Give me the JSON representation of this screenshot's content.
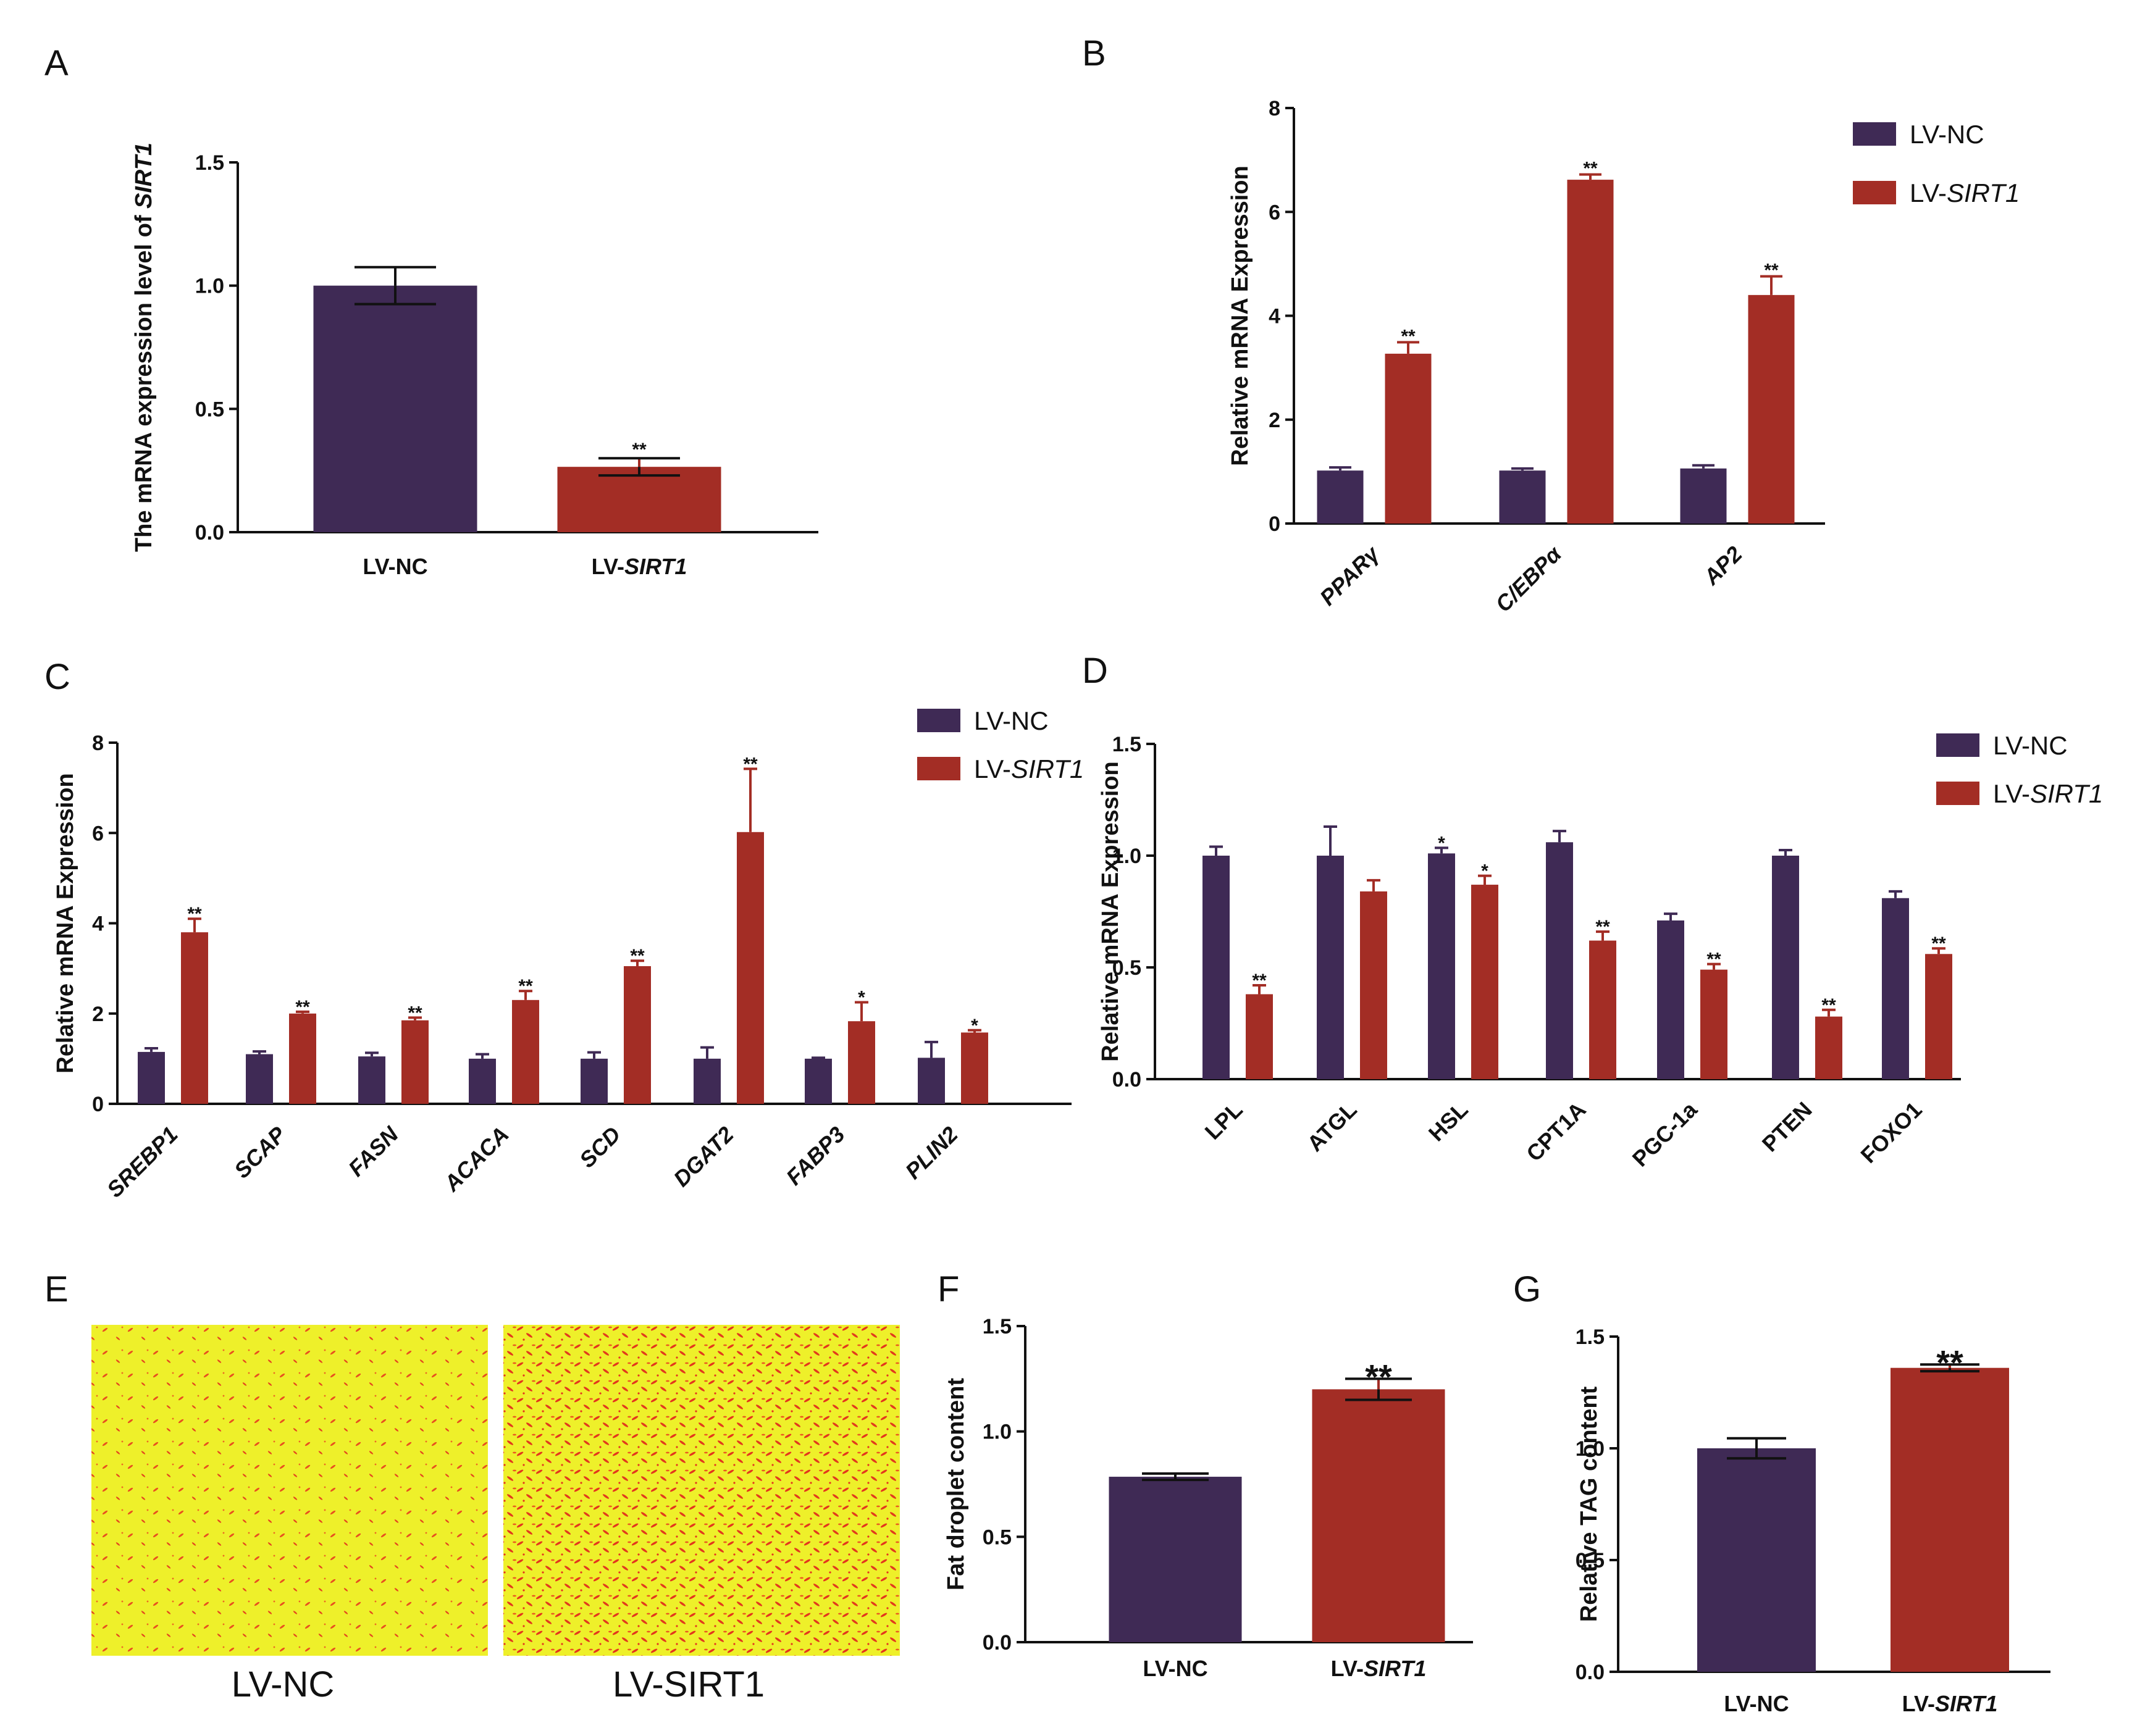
{
  "colors": {
    "nc": "#3f2a55",
    "sirt1": "#a32d25",
    "axis": "#111111",
    "img_bg": "#eef02a",
    "img_dot": "#e4361d"
  },
  "chart_data": [
    {
      "id": "A",
      "panel": "A",
      "type": "bar",
      "ylabel_parts": [
        "The mRNA expression level of ",
        "SIRT1"
      ],
      "ylim": [
        0,
        1.5
      ],
      "yticks": [
        "0.0",
        "0.5",
        "1.0",
        "1.5"
      ],
      "ytick_values": [
        0,
        0.5,
        1.0,
        1.5
      ],
      "categories": [
        {
          "label": "LV-NC"
        },
        {
          "label": "LV-",
          "label_it": "SIRT1"
        }
      ],
      "series": [
        {
          "name": "LV-NC",
          "values": [
            1.0,
            0.265
          ],
          "errors": [
            0.075,
            0.035
          ],
          "sig": [
            "",
            "**"
          ]
        }
      ]
    },
    {
      "id": "B",
      "panel": "B",
      "type": "bar",
      "ylabel": "Relative mRNA Expression",
      "ylim": [
        0,
        8
      ],
      "yticks": [
        "0",
        "2",
        "4",
        "6",
        "8"
      ],
      "ytick_values": [
        0,
        2,
        4,
        6,
        8
      ],
      "categories": [
        "PPARγ",
        "C/EBPα",
        "AP2"
      ],
      "legend": [
        "LV-NC",
        "LV-",
        "SIRT1"
      ],
      "series": [
        {
          "name": "LV-NC",
          "values": [
            1.02,
            1.02,
            1.06
          ],
          "errors": [
            0.06,
            0.04,
            0.06
          ],
          "sig": [
            "",
            "",
            ""
          ]
        },
        {
          "name": "LV-SIRT1",
          "values": [
            3.27,
            6.62,
            4.4
          ],
          "errors": [
            0.22,
            0.1,
            0.36
          ],
          "sig": [
            "**",
            "**",
            "**"
          ]
        }
      ]
    },
    {
      "id": "C",
      "panel": "C",
      "type": "bar",
      "ylabel": "Relative mRNA Expression",
      "ylim": [
        0,
        8
      ],
      "yticks": [
        "0",
        "2",
        "4",
        "6",
        "8"
      ],
      "ytick_values": [
        0,
        2,
        4,
        6,
        8
      ],
      "categories": [
        "SREBP1",
        "SCAP",
        "FASN",
        "ACACA",
        "SCD",
        "DGAT2",
        "FABP3",
        "PLIN2"
      ],
      "legend": [
        "LV-NC",
        "LV-",
        "SIRT1"
      ],
      "series": [
        {
          "name": "LV-NC",
          "values": [
            1.15,
            1.1,
            1.05,
            1.0,
            1.0,
            1.0,
            1.0,
            1.02
          ],
          "errors": [
            0.08,
            0.06,
            0.08,
            0.1,
            0.14,
            0.25,
            0.02,
            0.35
          ],
          "sig": [
            "",
            "",
            "",
            "",
            "",
            "",
            "",
            ""
          ]
        },
        {
          "name": "LV-SIRT1",
          "values": [
            3.8,
            2.0,
            1.85,
            2.3,
            3.05,
            6.02,
            1.83,
            1.58
          ],
          "errors": [
            0.3,
            0.04,
            0.06,
            0.2,
            0.12,
            1.4,
            0.42,
            0.05
          ],
          "sig": [
            "**",
            "**",
            "**",
            "**",
            "**",
            "**",
            "*",
            "*"
          ]
        }
      ]
    },
    {
      "id": "D",
      "panel": "D",
      "type": "bar",
      "ylabel": "Relative mRNA Expression",
      "ylim": [
        0,
        1.5
      ],
      "yticks": [
        "0.0",
        "0.5",
        "1.0",
        "1.5"
      ],
      "ytick_values": [
        0,
        0.5,
        1.0,
        1.5
      ],
      "categories": [
        "LPL",
        "ATGL",
        "HSL",
        "CPT1A",
        "PGC-1a",
        "PTEN",
        "FOXO1"
      ],
      "legend": [
        "LV-NC",
        "LV-",
        "SIRT1"
      ],
      "series": [
        {
          "name": "LV-NC",
          "values": [
            1.0,
            1.0,
            1.01,
            1.06,
            0.71,
            1.0,
            0.81
          ],
          "errors": [
            0.04,
            0.13,
            0.025,
            0.05,
            0.03,
            0.025,
            0.03
          ],
          "sig": [
            "",
            "",
            "*",
            "",
            "",
            "",
            ""
          ]
        },
        {
          "name": "LV-SIRT1",
          "values": [
            0.38,
            0.84,
            0.87,
            0.62,
            0.49,
            0.28,
            0.56
          ],
          "errors": [
            0.04,
            0.05,
            0.04,
            0.04,
            0.025,
            0.03,
            0.025
          ],
          "sig": [
            "**",
            "",
            "*",
            "**",
            "**",
            "**",
            "**"
          ]
        }
      ]
    },
    {
      "id": "F",
      "panel": "F",
      "type": "bar",
      "ylabel": "Fat droplet content",
      "ylim": [
        0,
        1.5
      ],
      "yticks": [
        "0.0",
        "0.5",
        "1.0",
        "1.5"
      ],
      "ytick_values": [
        0,
        0.5,
        1.0,
        1.5
      ],
      "categories": [
        {
          "label": "LV-NC"
        },
        {
          "label": "LV-",
          "label_it": "SIRT1"
        }
      ],
      "series": [
        {
          "name": "LV-NC",
          "values": [
            0.785,
            1.2
          ],
          "errors": [
            0.015,
            0.05
          ],
          "sig": [
            "",
            "**"
          ]
        }
      ]
    },
    {
      "id": "G",
      "panel": "G",
      "type": "bar",
      "ylabel": "Relative TAG content",
      "ylim": [
        0,
        1.5
      ],
      "yticks": [
        "0.0",
        "0.5",
        "1.0",
        "1.5"
      ],
      "ytick_values": [
        0,
        0.5,
        1.0,
        1.5
      ],
      "categories": [
        {
          "label": "LV-NC"
        },
        {
          "label": "LV-",
          "label_it": "SIRT1"
        }
      ],
      "series": [
        {
          "name": "LV-NC",
          "values": [
            1.0,
            1.36
          ],
          "errors": [
            0.045,
            0.015
          ],
          "sig": [
            "",
            "**"
          ]
        }
      ]
    }
  ],
  "panel_e": {
    "label": "E",
    "captions": [
      "LV-NC",
      "LV-SIRT1"
    ]
  }
}
